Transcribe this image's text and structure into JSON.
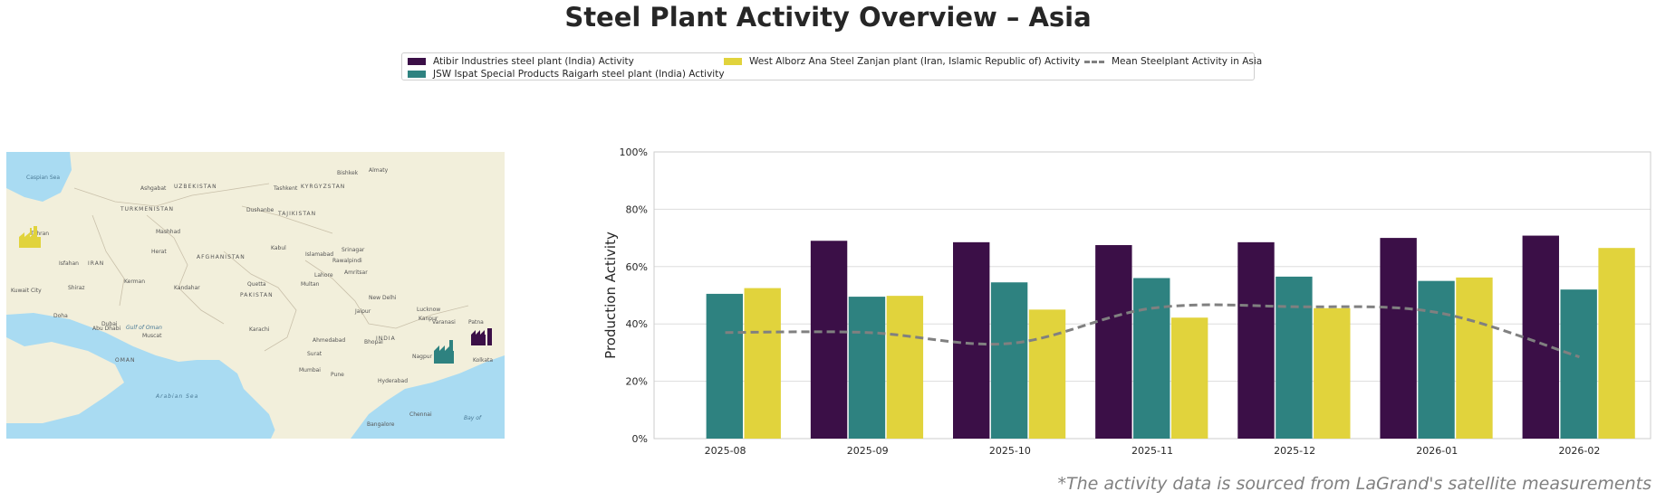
{
  "title": "Steel Plant Activity Overview – Asia",
  "footnote": "*The activity data is sourced from LaGrand's satellite measurements",
  "legend": {
    "items": [
      {
        "label": "Atibir Industries steel plant (India) Activity",
        "color": "#3b0f47"
      },
      {
        "label": "JSW Ispat Special Products Raigarh steel plant (India) Activity",
        "color": "#2e8280"
      },
      {
        "label": "West Alborz Ana Steel Zanjan plant (Iran, Islamic Republic of) Activity",
        "color": "#e1d33c"
      },
      {
        "label": "Mean Steelplant Activity in Asia",
        "color": "#808080",
        "style": "dashed-line"
      }
    ]
  },
  "map": {
    "labels": [
      {
        "text": "UZBEKISTAN"
      },
      {
        "text": "TURKMENISTAN"
      },
      {
        "text": "KYRGYZSTAN"
      },
      {
        "text": "TAJIKISTAN"
      },
      {
        "text": "AFGHANISTAN"
      },
      {
        "text": "IRAN"
      },
      {
        "text": "PAKISTAN"
      },
      {
        "text": "INDIA"
      },
      {
        "text": "OMAN"
      },
      {
        "text": "Arabian Sea"
      },
      {
        "text": "Caspian Sea"
      },
      {
        "text": "Tashkent"
      },
      {
        "text": "Bishkek"
      },
      {
        "text": "Almaty"
      },
      {
        "text": "Dushanbe"
      },
      {
        "text": "Ashgabat"
      },
      {
        "text": "Mashhad"
      },
      {
        "text": "Kabul"
      },
      {
        "text": "Tehran"
      },
      {
        "text": "Isfahan"
      },
      {
        "text": "Islamabad"
      },
      {
        "text": "Lahore"
      },
      {
        "text": "Karachi"
      },
      {
        "text": "New Delhi"
      },
      {
        "text": "Mumbai"
      },
      {
        "text": "Hyderabad"
      },
      {
        "text": "Dubai"
      },
      {
        "text": "Abu Dhabi"
      },
      {
        "text": "Muscat"
      },
      {
        "text": "Ahmedabad"
      },
      {
        "text": "Jaipur"
      },
      {
        "text": "Lucknow"
      },
      {
        "text": "Nagpur"
      },
      {
        "text": "Kolkata"
      },
      {
        "text": "Bangalore"
      },
      {
        "text": "Chennai"
      },
      {
        "text": "Kuwait City"
      },
      {
        "text": "Doha"
      },
      {
        "text": "Quetta"
      },
      {
        "text": "Kandahar"
      },
      {
        "text": "Herat"
      },
      {
        "text": "Kerman"
      },
      {
        "text": "Shiraz"
      },
      {
        "text": "Pune"
      },
      {
        "text": "Surat"
      },
      {
        "text": "Patna"
      },
      {
        "text": "Kanpur"
      },
      {
        "text": "Bhopal"
      },
      {
        "text": "Varanasi"
      },
      {
        "text": "Srinagar"
      },
      {
        "text": "Amritsar"
      },
      {
        "text": "Multan"
      },
      {
        "text": "Rawalpindi"
      },
      {
        "text": "Bay of"
      },
      {
        "text": "Gulf of Oman"
      }
    ],
    "markers": [
      {
        "name": "atibir-plant-marker-icon",
        "color": "#3b0f47"
      },
      {
        "name": "jsw-raigarh-plant-marker-icon",
        "color": "#2e8280"
      },
      {
        "name": "west-alborz-plant-marker-icon",
        "color": "#e1d33c"
      }
    ]
  },
  "chart_data": {
    "type": "bar",
    "categories": [
      "2025-08",
      "2025-09",
      "2025-10",
      "2025-11",
      "2025-12",
      "2026-01",
      "2026-02"
    ],
    "series": [
      {
        "name": "Atibir Industries steel plant (India) Activity",
        "color": "#3b0f47",
        "values": [
          null,
          69.0,
          68.5,
          67.5,
          68.5,
          70.0,
          70.8
        ]
      },
      {
        "name": "JSW Ispat Special Products Raigarh steel plant (India) Activity",
        "color": "#2e8280",
        "values": [
          50.5,
          49.5,
          54.5,
          56.0,
          56.5,
          55.0,
          52.0
        ]
      },
      {
        "name": "West Alborz Ana Steel Zanjan plant (Iran, Islamic Republic of) Activity",
        "color": "#e1d33c",
        "values": [
          52.5,
          49.8,
          45.0,
          42.2,
          45.5,
          56.2,
          66.5
        ]
      }
    ],
    "line": {
      "name": "Mean Steelplant Activity in Asia",
      "color": "#808080",
      "values": [
        37.0,
        37.0,
        33.2,
        45.5,
        46.0,
        44.0,
        28.5
      ]
    },
    "ylabel": "Production Activity",
    "xlabel": "",
    "ylim": [
      0,
      100
    ],
    "yticks": [
      0,
      20,
      40,
      60,
      80,
      100
    ],
    "ytick_labels": [
      "0%",
      "20%",
      "40%",
      "60%",
      "80%",
      "100%"
    ],
    "grid": "horizontal",
    "legend_position": "top-center"
  }
}
